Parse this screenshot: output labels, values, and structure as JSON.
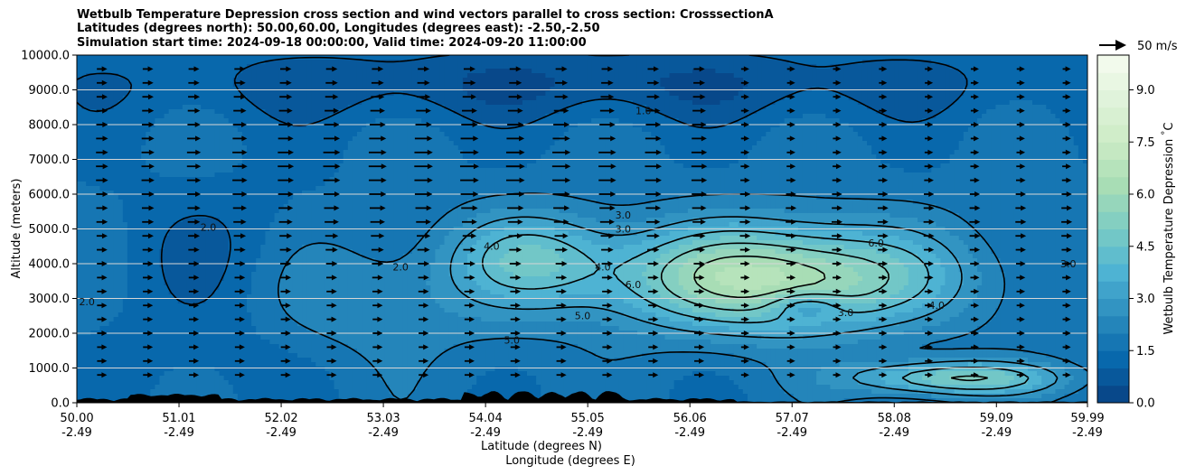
{
  "chart_data": {
    "type": "heatmap",
    "title_lines": [
      "Wetbulb Temperature Depression cross section and wind vectors parallel to cross section: CrosssectionA",
      "Latitudes (degrees north): 50.00,60.00, Longitudes (degrees east): -2.50,-2.50",
      "Simulation start time: 2024-09-18 00:00:00, Valid time: 2024-09-20 11:00:00"
    ],
    "xlabel_lat": "Latitude (degrees N)",
    "xlabel_lon": "Longitude (degrees E)",
    "ylabel": "Altitude (meters)",
    "colorbar_label": "Wetbulb Temperature Depression $^\\circ$C",
    "quiver_key_label": "50 m/s",
    "x_ticks_lat": [
      "50.00",
      "51.01",
      "52.02",
      "53.03",
      "54.04",
      "55.05",
      "56.06",
      "57.07",
      "58.08",
      "59.09",
      "59.99"
    ],
    "x_ticks_lon": [
      "-2.49",
      "-2.49",
      "-2.49",
      "-2.49",
      "-2.49",
      "-2.49",
      "-2.49",
      "-2.49",
      "-2.49",
      "-2.49",
      "-2.49"
    ],
    "x_range": [
      50.0,
      59.99
    ],
    "y_ticks": [
      "0.0",
      "1000.0",
      "2000.0",
      "3000.0",
      "4000.0",
      "5000.0",
      "6000.0",
      "7000.0",
      "8000.0",
      "9000.0",
      "10000.0"
    ],
    "ylim": [
      0,
      10000
    ],
    "colorbar_ticks": [
      "0.0",
      "1.5",
      "3.0",
      "4.5",
      "6.0",
      "7.5",
      "9.0"
    ],
    "colorbar_range": [
      0,
      10
    ],
    "grid_horizontal": true,
    "colormap": [
      "#084081",
      "#0868ac",
      "#2b8cbe",
      "#4eb3d3",
      "#7bccc4",
      "#a8ddb5",
      "#ccebc5",
      "#e0f3db",
      "#f7fcf0"
    ],
    "contour_labels": [
      "1.0",
      "2.0",
      "3.0",
      "4.0",
      "5.0",
      "6.0"
    ],
    "terrain_color": "#000000"
  }
}
